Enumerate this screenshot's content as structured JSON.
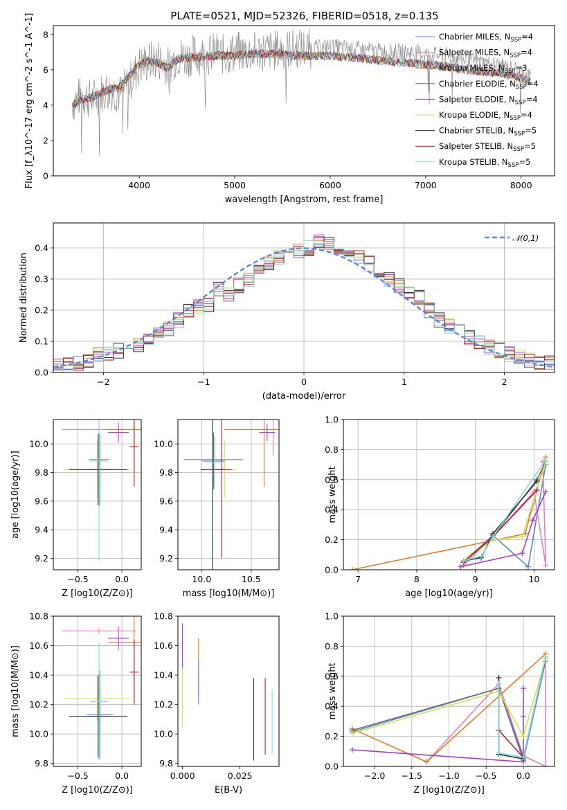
{
  "title": "PLATE=0521, MJD=52326, FIBERID=0518, z=0.135",
  "colors": {
    "Chabrier MILES": "#5b86d6",
    "Salpeter MILES": "#e07fbd",
    "Kroupa MILES": "#e07b24",
    "Chabrier ELODIE": "#6e6e6e",
    "Salpeter ELODIE": "#a33bd0",
    "Kroupa ELODIE": "#cde24a",
    "Chabrier STELIB": "#303030",
    "Salpeter STELIB": "#b81c1c",
    "Kroupa STELIB": "#7fd9dc",
    "data": "#7f7f7f",
    "gaussian": "#5b86d6",
    "grid": "#b0b0b0"
  },
  "chart_data": [
    {
      "type": "line",
      "xlabel": "wavelength [Angstrom, rest frame]",
      "ylabel": "Flux [f_λ10^-17 erg cm^-2 s^-1 A^-1]",
      "xlim": [
        3100,
        8350
      ],
      "ylim": [
        0,
        8.5
      ],
      "xticks": [
        4000,
        5000,
        6000,
        7000,
        8000
      ],
      "yticks": [
        0,
        2,
        4,
        6,
        8
      ],
      "grid": false,
      "legend_position": "top-right",
      "legend": [
        {
          "key": "Chabrier MILES",
          "text": "Chabrier MILES, N",
          "sub": "SSP",
          "tail": "=4"
        },
        {
          "key": "Salpeter MILES",
          "text": "Salpeter MILES, N",
          "sub": "SSP",
          "tail": "=4"
        },
        {
          "key": "Kroupa MILES",
          "text": "Kroupa MILES, N",
          "sub": "SSP",
          "tail": "=3"
        },
        {
          "key": "Chabrier ELODIE",
          "text": "Chabrier ELODIE, N",
          "sub": "SSP",
          "tail": "=4"
        },
        {
          "key": "Salpeter ELODIE",
          "text": "Salpeter ELODIE, N",
          "sub": "SSP",
          "tail": "=4"
        },
        {
          "key": "Kroupa ELODIE",
          "text": "Kroupa ELODIE, N",
          "sub": "SSP",
          "tail": "=4"
        },
        {
          "key": "Chabrier STELIB",
          "text": "Chabrier STELIB, N",
          "sub": "SSP",
          "tail": "=5"
        },
        {
          "key": "Salpeter STELIB",
          "text": "Salpeter STELIB, N",
          "sub": "SSP",
          "tail": "=5"
        },
        {
          "key": "Kroupa STELIB",
          "text": "Kroupa STELIB, N",
          "sub": "SSP",
          "tail": "=5"
        }
      ],
      "data_x": [
        3300,
        3400,
        3500,
        3600,
        3700,
        3800,
        3900,
        4000,
        4100,
        4200,
        4300,
        4400,
        4500,
        4600,
        4700,
        4800,
        4900,
        5000,
        5200,
        5400,
        5600,
        5800,
        6000,
        6200,
        6400,
        6600,
        6800,
        7000,
        7200,
        7400,
        7600,
        7800,
        8000,
        8100
      ],
      "data_y": [
        4.1,
        4.6,
        4.3,
        4.7,
        4.9,
        4.6,
        5.3,
        6.2,
        6.5,
        6.6,
        6.2,
        6.8,
        6.7,
        6.9,
        6.8,
        7.0,
        6.8,
        7.0,
        7.0,
        7.1,
        7.2,
        7.2,
        7.3,
        7.2,
        7.1,
        7.0,
        7.0,
        6.9,
        6.8,
        6.6,
        6.4,
        6.2,
        5.9,
        5.6
      ],
      "model_x": [
        3300,
        3400,
        3500,
        3600,
        3700,
        3800,
        3900,
        4000,
        4100,
        4200,
        4300,
        4400,
        4500,
        4600,
        4800,
        5000,
        5200,
        5400,
        5600,
        5800,
        6000,
        6200,
        6400,
        6600,
        6800,
        7000,
        7200,
        7400,
        7600,
        7800,
        8000,
        8100
      ],
      "model_y": [
        4.0,
        4.3,
        4.4,
        4.7,
        4.9,
        5.0,
        5.7,
        6.3,
        6.5,
        6.4,
        6.1,
        6.6,
        6.7,
        6.7,
        6.8,
        6.8,
        6.9,
        6.9,
        6.8,
        6.8,
        6.8,
        6.7,
        6.6,
        6.5,
        6.4,
        6.3,
        6.2,
        6.0,
        5.9,
        5.8,
        5.5,
        5.3
      ]
    },
    {
      "type": "line",
      "xlabel": "(data-model)/error",
      "ylabel": "Normed distribution",
      "xlim": [
        -2.5,
        2.5
      ],
      "ylim": [
        0,
        0.48
      ],
      "xticks": [
        -2,
        -1,
        0,
        1,
        2
      ],
      "xticklabels": [
        "−2",
        "−1",
        "0",
        "1",
        "2"
      ],
      "yticks": [
        0.0,
        0.1,
        0.2,
        0.3,
        0.4
      ],
      "yticklabels": [
        "0.0",
        "0.1",
        "0.2",
        "0.3",
        "0.4"
      ],
      "grid": true,
      "legend_position": "top-right",
      "gaussian_label": "𝒩(0,1)",
      "bins": [
        -2.5,
        -2.4,
        -2.3,
        -2.2,
        -2.1,
        -2.0,
        -1.9,
        -1.8,
        -1.7,
        -1.6,
        -1.5,
        -1.4,
        -1.3,
        -1.2,
        -1.1,
        -1.0,
        -0.9,
        -0.8,
        -0.7,
        -0.6,
        -0.5,
        -0.4,
        -0.3,
        -0.2,
        -0.1,
        0.0,
        0.1,
        0.2,
        0.3,
        0.4,
        0.5,
        0.6,
        0.7,
        0.8,
        0.9,
        1.0,
        1.1,
        1.2,
        1.3,
        1.4,
        1.5,
        1.6,
        1.7,
        1.8,
        1.9,
        2.0,
        2.1,
        2.2,
        2.3,
        2.4,
        2.5
      ],
      "hist": [
        0.02,
        0.025,
        0.03,
        0.04,
        0.055,
        0.06,
        0.07,
        0.08,
        0.085,
        0.1,
        0.12,
        0.14,
        0.17,
        0.2,
        0.21,
        0.22,
        0.27,
        0.25,
        0.28,
        0.3,
        0.33,
        0.35,
        0.37,
        0.38,
        0.39,
        0.4,
        0.42,
        0.41,
        0.4,
        0.38,
        0.37,
        0.35,
        0.33,
        0.3,
        0.28,
        0.26,
        0.24,
        0.2,
        0.17,
        0.15,
        0.13,
        0.11,
        0.095,
        0.08,
        0.07,
        0.06,
        0.05,
        0.04,
        0.03,
        0.03
      ]
    },
    {
      "type": "scatter",
      "xlabel": "Z [log10(Z/Z⊙)]",
      "ylabel": "age  [log10(age/yr)]",
      "xlim": [
        -0.78,
        0.22
      ],
      "ylim": [
        9.12,
        10.17
      ],
      "xticks": [
        -0.5,
        0.0
      ],
      "xticklabels": [
        "−0.5",
        "0.0"
      ],
      "yticks": [
        9.2,
        9.4,
        9.6,
        9.8,
        10.0
      ],
      "yticklabels": [
        "9.2",
        "9.4",
        "9.6",
        "9.8",
        "10.0"
      ],
      "grid": true,
      "points": [
        {
          "key": "Chabrier MILES",
          "x": -0.25,
          "y": 9.82,
          "xerr": 0.15,
          "yerr": 0.25
        },
        {
          "key": "Salpeter MILES",
          "x": -0.26,
          "y": 10.1,
          "xerr": 0.42,
          "yerr": 0.05
        },
        {
          "key": "Kroupa MILES",
          "x": 0.14,
          "y": 10.1,
          "xerr": 0.3,
          "yerr": 0.3
        },
        {
          "key": "Chabrier ELODIE",
          "x": -0.26,
          "y": 9.89,
          "xerr": 0.12,
          "yerr": 0.18
        },
        {
          "key": "Salpeter ELODIE",
          "x": -0.04,
          "y": 10.08,
          "xerr": 0.12,
          "yerr": 0.07
        },
        {
          "key": "Kroupa ELODIE",
          "x": -0.28,
          "y": 9.82,
          "xerr": 0.38,
          "yerr": 0.2
        },
        {
          "key": "Chabrier STELIB",
          "x": -0.27,
          "y": 9.82,
          "xerr": 0.33,
          "yerr": 0.25
        },
        {
          "key": "Salpeter STELIB",
          "x": 0.14,
          "y": 9.98,
          "xerr": 0.05,
          "yerr": 0.28
        },
        {
          "key": "Kroupa STELIB",
          "x": -0.26,
          "y": 9.88,
          "xerr": 0.1,
          "yerr": 0.7
        }
      ]
    },
    {
      "type": "scatter",
      "xlabel": "mass [log10(M/M⊙)]",
      "ylabel": "",
      "xlim": [
        9.76,
        10.78
      ],
      "ylim": [
        9.12,
        10.17
      ],
      "xticks": [
        10.0,
        10.5
      ],
      "xticklabels": [
        "10.0",
        "10.5"
      ],
      "yticks": [
        9.2,
        9.4,
        9.6,
        9.8,
        10.0
      ],
      "yticklabels": [
        "9.2",
        "9.4",
        "9.6",
        "9.8",
        "10.0"
      ],
      "grid": true,
      "points": [
        {
          "key": "Chabrier MILES",
          "x": 10.12,
          "y": 9.88,
          "xerr": 0.12,
          "yerr": 0.2
        },
        {
          "key": "Salpeter MILES",
          "x": 10.72,
          "y": 10.1,
          "xerr": 0.02,
          "yerr": 0.18
        },
        {
          "key": "Kroupa MILES",
          "x": 10.63,
          "y": 10.1,
          "xerr": 0.4,
          "yerr": 0.4
        },
        {
          "key": "Chabrier ELODIE",
          "x": 10.12,
          "y": 9.89,
          "xerr": 0.3,
          "yerr": 0.18
        },
        {
          "key": "Salpeter ELODIE",
          "x": 10.66,
          "y": 10.08,
          "xerr": 0.08,
          "yerr": 0.06
        },
        {
          "key": "Kroupa ELODIE",
          "x": 10.23,
          "y": 9.82,
          "xerr": 0.12,
          "yerr": 0.2
        },
        {
          "key": "Chabrier STELIB",
          "x": 10.11,
          "y": 9.82,
          "xerr": 0.12,
          "yerr": 0.7
        },
        {
          "key": "Salpeter STELIB",
          "x": 10.2,
          "y": 9.82,
          "xerr": 0.1,
          "yerr": 0.62
        },
        {
          "key": "Kroupa STELIB",
          "x": 10.13,
          "y": 9.87,
          "xerr": 0.1,
          "yerr": 0.18
        }
      ]
    },
    {
      "type": "line",
      "xlabel": "age  [log10(age/yr)]",
      "ylabel": "mass weight",
      "xlim": [
        6.75,
        10.35
      ],
      "ylim": [
        0,
        1.0
      ],
      "xticks": [
        7,
        8,
        9,
        10
      ],
      "xticklabels": [
        "7",
        "8",
        "9",
        "10"
      ],
      "yticks": [
        0.0,
        0.2,
        0.4,
        0.6,
        0.8,
        1.0
      ],
      "yticklabels": [
        "0.0",
        "0.2",
        "0.4",
        "0.6",
        "0.8",
        "1.0"
      ],
      "grid": true,
      "series": [
        {
          "key": "Chabrier MILES",
          "x": [
            8.8,
            9.3,
            9.9,
            10.2
          ],
          "y": [
            0.05,
            0.23,
            0.02,
            0.7
          ]
        },
        {
          "key": "Salpeter MILES",
          "x": [
            8.8,
            9.3,
            10.0,
            10.2,
            10.15
          ],
          "y": [
            0.03,
            0.22,
            0.52,
            0.03,
            0.72
          ]
        },
        {
          "key": "Kroupa MILES",
          "x": [
            6.9,
            9.85,
            10.2
          ],
          "y": [
            0.0,
            0.24,
            0.75
          ]
        },
        {
          "key": "Chabrier ELODIE",
          "x": [
            8.8,
            9.3,
            10.05,
            10.2
          ],
          "y": [
            0.06,
            0.22,
            0.6,
            0.72
          ]
        },
        {
          "key": "Salpeter ELODIE",
          "x": [
            8.75,
            9.8,
            9.98,
            10.2
          ],
          "y": [
            0.02,
            0.11,
            0.33,
            0.52
          ]
        },
        {
          "key": "Kroupa ELODIE",
          "x": [
            8.8,
            9.3,
            9.8,
            10.2
          ],
          "y": [
            0.06,
            0.2,
            0.22,
            0.72
          ]
        },
        {
          "key": "Chabrier STELIB",
          "x": [
            8.8,
            9.1,
            9.3,
            10.05
          ],
          "y": [
            0.06,
            0.08,
            0.24,
            0.59
          ]
        },
        {
          "key": "Salpeter STELIB",
          "x": [
            8.8,
            9.3,
            10.05
          ],
          "y": [
            0.05,
            0.22,
            0.53
          ]
        },
        {
          "key": "Kroupa STELIB",
          "x": [
            8.8,
            9.1,
            9.3,
            10.2
          ],
          "y": [
            0.06,
            0.09,
            0.22,
            0.73
          ]
        }
      ]
    },
    {
      "type": "scatter",
      "xlabel": "Z [log10(Z/Z⊙)]",
      "ylabel": "mass [log10(M/M⊙)]",
      "xlim": [
        -0.78,
        0.22
      ],
      "ylim": [
        9.78,
        10.8
      ],
      "xticks": [
        -0.5,
        0.0
      ],
      "xticklabels": [
        "−0.5",
        "0.0"
      ],
      "yticks": [
        9.8,
        10.0,
        10.2,
        10.4,
        10.6,
        10.8
      ],
      "yticklabels": [
        "9.8",
        "10.0",
        "10.2",
        "10.4",
        "10.6",
        "10.8"
      ],
      "grid": true,
      "points": [
        {
          "key": "Chabrier MILES",
          "x": -0.25,
          "y": 10.13,
          "xerr": 0.15,
          "yerr": 0.3
        },
        {
          "key": "Salpeter MILES",
          "x": -0.26,
          "y": 10.7,
          "xerr": 0.42,
          "yerr": 0.02
        },
        {
          "key": "Kroupa MILES",
          "x": 0.14,
          "y": 10.62,
          "xerr": 0.3,
          "yerr": 0.4
        },
        {
          "key": "Chabrier ELODIE",
          "x": -0.26,
          "y": 10.12,
          "xerr": 0.12,
          "yerr": 0.18
        },
        {
          "key": "Salpeter ELODIE",
          "x": -0.04,
          "y": 10.65,
          "xerr": 0.12,
          "yerr": 0.08
        },
        {
          "key": "Kroupa ELODIE",
          "x": -0.28,
          "y": 10.24,
          "xerr": 0.38,
          "yerr": 0.15
        },
        {
          "key": "Chabrier STELIB",
          "x": -0.27,
          "y": 10.12,
          "xerr": 0.33,
          "yerr": 0.28
        },
        {
          "key": "Salpeter STELIB",
          "x": 0.14,
          "y": 10.42,
          "xerr": 0.05,
          "yerr": 0.22
        },
        {
          "key": "Kroupa STELIB",
          "x": -0.26,
          "y": 10.22,
          "xerr": 0.1,
          "yerr": 0.4
        }
      ]
    },
    {
      "type": "scatter",
      "xlabel": "E(B-V)",
      "ylabel": "",
      "xlim": [
        -0.002,
        0.042
      ],
      "ylim": [
        9.78,
        10.8
      ],
      "xticks": [
        0.0,
        0.025
      ],
      "xticklabels": [
        "0.000",
        "0.025"
      ],
      "yticks": [
        9.8,
        10.0,
        10.2,
        10.4,
        10.6,
        10.8
      ],
      "yticklabels": [
        "9.8",
        "10.0",
        "10.2",
        "10.4",
        "10.6",
        "10.8"
      ],
      "grid": false,
      "points": [
        {
          "key": "Salpeter ELODIE",
          "x": 0.0,
          "y": 10.6,
          "yerr": 0.15
        },
        {
          "key": "Kroupa ELODIE",
          "x": 0.0,
          "y": 10.25,
          "yerr": 0.2
        },
        {
          "key": "Kroupa MILES",
          "x": 0.007,
          "y": 10.45,
          "yerr": 0.2
        },
        {
          "key": "Chabrier MILES",
          "x": 0.007,
          "y": 10.35,
          "yerr": 0.15
        },
        {
          "key": "Chabrier STELIB",
          "x": 0.031,
          "y": 10.1,
          "yerr": 0.28
        },
        {
          "key": "Salpeter STELIB",
          "x": 0.036,
          "y": 10.12,
          "yerr": 0.26
        },
        {
          "key": "Kroupa STELIB",
          "x": 0.039,
          "y": 10.08,
          "yerr": 0.22
        }
      ]
    },
    {
      "type": "line",
      "xlabel": "Z [log10(Z/Z⊙)]",
      "ylabel": "mass weight",
      "xlim": [
        -2.42,
        0.42
      ],
      "ylim": [
        0,
        1.0
      ],
      "xticks": [
        -2.0,
        -1.5,
        -1.0,
        -0.5,
        0.0
      ],
      "xticklabels": [
        "−2.0",
        "−1.5",
        "−1.0",
        "−0.5",
        "0.0"
      ],
      "yticks": [
        0.0,
        0.2,
        0.4,
        0.6,
        0.8,
        1.0
      ],
      "yticklabels": [
        "0.0",
        "0.2",
        "0.4",
        "0.6",
        "0.8",
        "1.0"
      ],
      "grid": true,
      "series": [
        {
          "key": "Chabrier MILES",
          "x": [
            -2.3,
            -0.33,
            0.0,
            0.3
          ],
          "y": [
            0.23,
            0.52,
            0.04,
            0.7
          ]
        },
        {
          "key": "Salpeter MILES",
          "x": [
            -1.3,
            -0.33,
            0.0,
            0.3,
            0.3
          ],
          "y": [
            0.03,
            0.55,
            0.07,
            0.0,
            0.72
          ]
        },
        {
          "key": "Kroupa MILES",
          "x": [
            -2.3,
            -1.3,
            0.3
          ],
          "y": [
            0.25,
            0.03,
            0.75
          ]
        },
        {
          "key": "Chabrier ELODIE",
          "x": [
            -2.3,
            -0.33,
            0.0,
            0.3
          ],
          "y": [
            0.24,
            0.52,
            0.06,
            0.72
          ]
        },
        {
          "key": "Salpeter ELODIE",
          "x": [
            -2.3,
            0.0,
            0.0,
            0.0
          ],
          "y": [
            0.11,
            0.03,
            0.33,
            0.52
          ]
        },
        {
          "key": "Kroupa ELODIE",
          "x": [
            -2.3,
            -0.33,
            0.0,
            0.3
          ],
          "y": [
            0.22,
            0.5,
            0.2,
            0.72
          ]
        },
        {
          "key": "Chabrier STELIB",
          "x": [
            -0.33,
            -0.33,
            0.0
          ],
          "y": [
            0.59,
            0.08,
            0.05
          ]
        },
        {
          "key": "Salpeter STELIB",
          "x": [
            -0.33,
            0.0
          ],
          "y": [
            0.24,
            0.06
          ]
        },
        {
          "key": "Kroupa STELIB",
          "x": [
            -0.33,
            -0.33,
            0.0,
            0.3
          ],
          "y": [
            0.55,
            0.09,
            0.06,
            0.73
          ]
        }
      ]
    }
  ]
}
